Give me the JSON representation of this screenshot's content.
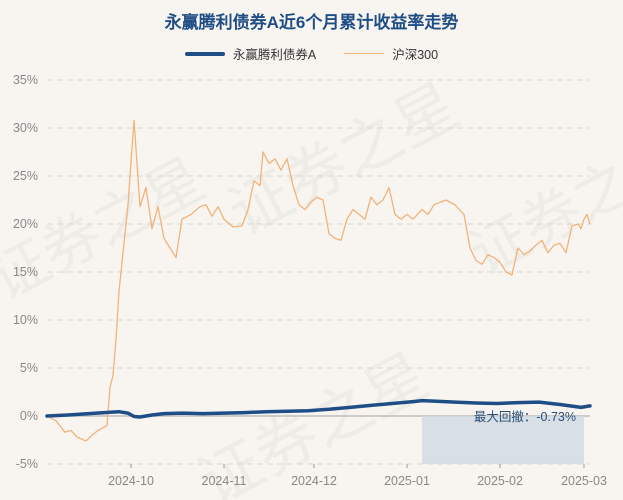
{
  "title": "永赢腾利债券A近6个月累计收益率走势",
  "legend": {
    "fund": "永赢腾利债券A",
    "index": "沪深300"
  },
  "watermark_text": "证券之星",
  "drawdown_label": "最大回撤：-0.73%",
  "colors": {
    "fund": "#1f4e86",
    "index": "#f2b27a",
    "drawdown": "#cfdbe4"
  },
  "chart_data": {
    "type": "line",
    "ylim": [
      -5,
      35
    ],
    "yticks": [
      -5,
      0,
      5,
      10,
      15,
      20,
      25,
      30,
      35
    ],
    "ytick_labels": [
      "-5%",
      "0%",
      "5%",
      "10%",
      "15%",
      "20%",
      "25%",
      "30%",
      "35%"
    ],
    "x_range": [
      "2024-09-03",
      "2025-03-03"
    ],
    "xticks": [
      "2024-10-01",
      "2024-11-01",
      "2024-12-01",
      "2025-01-01",
      "2025-02-01",
      "2025-03-01"
    ],
    "xtick_labels": [
      "2024-10",
      "2024-11",
      "2024-12",
      "2025-01",
      "2025-02",
      "2025-03"
    ],
    "grid": true,
    "legend_position": "top-center",
    "drawdown_range": [
      "2025-01-06",
      "2025-03-01"
    ],
    "series": [
      {
        "name": "永赢腾利债券A",
        "points": [
          [
            "2024-09-03",
            0.0
          ],
          [
            "2024-09-10",
            0.1
          ],
          [
            "2024-09-17",
            0.25
          ],
          [
            "2024-09-24",
            0.4
          ],
          [
            "2024-09-27",
            0.45
          ],
          [
            "2024-09-30",
            0.3
          ],
          [
            "2024-10-02",
            -0.05
          ],
          [
            "2024-10-04",
            -0.1
          ],
          [
            "2024-10-08",
            0.1
          ],
          [
            "2024-10-12",
            0.25
          ],
          [
            "2024-10-18",
            0.3
          ],
          [
            "2024-10-25",
            0.25
          ],
          [
            "2024-11-01",
            0.3
          ],
          [
            "2024-11-08",
            0.35
          ],
          [
            "2024-11-15",
            0.45
          ],
          [
            "2024-11-22",
            0.5
          ],
          [
            "2024-11-29",
            0.55
          ],
          [
            "2024-12-06",
            0.7
          ],
          [
            "2024-12-13",
            0.9
          ],
          [
            "2024-12-20",
            1.1
          ],
          [
            "2024-12-27",
            1.3
          ],
          [
            "2025-01-03",
            1.5
          ],
          [
            "2025-01-06",
            1.6
          ],
          [
            "2025-01-10",
            1.55
          ],
          [
            "2025-01-17",
            1.45
          ],
          [
            "2025-01-24",
            1.35
          ],
          [
            "2025-01-31",
            1.3
          ],
          [
            "2025-02-07",
            1.4
          ],
          [
            "2025-02-14",
            1.45
          ],
          [
            "2025-02-21",
            1.2
          ],
          [
            "2025-02-28",
            0.9
          ],
          [
            "2025-03-03",
            1.05
          ]
        ]
      },
      {
        "name": "沪深300",
        "points": [
          [
            "2024-09-03",
            0.0
          ],
          [
            "2024-09-06",
            -0.5
          ],
          [
            "2024-09-09",
            -1.7
          ],
          [
            "2024-09-11",
            -1.5
          ],
          [
            "2024-09-13",
            -2.2
          ],
          [
            "2024-09-16",
            -2.6
          ],
          [
            "2024-09-18",
            -2.0
          ],
          [
            "2024-09-20",
            -1.5
          ],
          [
            "2024-09-23",
            -1.0
          ],
          [
            "2024-09-24",
            3.0
          ],
          [
            "2024-09-25",
            4.2
          ],
          [
            "2024-09-26",
            8.0
          ],
          [
            "2024-09-27",
            13.0
          ],
          [
            "2024-09-30",
            22.0
          ],
          [
            "2024-10-02",
            30.8
          ],
          [
            "2024-10-04",
            21.8
          ],
          [
            "2024-10-06",
            23.8
          ],
          [
            "2024-10-08",
            19.5
          ],
          [
            "2024-10-10",
            21.8
          ],
          [
            "2024-10-12",
            18.5
          ],
          [
            "2024-10-14",
            17.5
          ],
          [
            "2024-10-16",
            16.5
          ],
          [
            "2024-10-18",
            20.5
          ],
          [
            "2024-10-21",
            21.0
          ],
          [
            "2024-10-24",
            21.8
          ],
          [
            "2024-10-26",
            22.0
          ],
          [
            "2024-10-28",
            20.8
          ],
          [
            "2024-10-30",
            21.8
          ],
          [
            "2024-11-01",
            20.5
          ],
          [
            "2024-11-04",
            19.7
          ],
          [
            "2024-11-07",
            19.8
          ],
          [
            "2024-11-09",
            21.5
          ],
          [
            "2024-11-11",
            24.5
          ],
          [
            "2024-11-13",
            24.0
          ],
          [
            "2024-11-14",
            27.5
          ],
          [
            "2024-11-16",
            26.3
          ],
          [
            "2024-11-18",
            26.8
          ],
          [
            "2024-11-20",
            25.6
          ],
          [
            "2024-11-22",
            26.8
          ],
          [
            "2024-11-24",
            24.0
          ],
          [
            "2024-11-26",
            22.0
          ],
          [
            "2024-11-28",
            21.5
          ],
          [
            "2024-11-30",
            22.3
          ],
          [
            "2024-12-02",
            22.8
          ],
          [
            "2024-12-04",
            22.5
          ],
          [
            "2024-12-06",
            19.0
          ],
          [
            "2024-12-08",
            18.5
          ],
          [
            "2024-12-10",
            18.3
          ],
          [
            "2024-12-12",
            20.5
          ],
          [
            "2024-12-14",
            21.5
          ],
          [
            "2024-12-16",
            21.0
          ],
          [
            "2024-12-18",
            20.5
          ],
          [
            "2024-12-20",
            22.8
          ],
          [
            "2024-12-22",
            22.0
          ],
          [
            "2024-12-24",
            22.5
          ],
          [
            "2024-12-26",
            23.8
          ],
          [
            "2024-12-28",
            21.0
          ],
          [
            "2024-12-30",
            20.5
          ],
          [
            "2025-01-01",
            21.0
          ],
          [
            "2025-01-03",
            20.5
          ],
          [
            "2025-01-06",
            21.5
          ],
          [
            "2025-01-08",
            21.0
          ],
          [
            "2025-01-10",
            22.0
          ],
          [
            "2025-01-14",
            22.5
          ],
          [
            "2025-01-17",
            22.0
          ],
          [
            "2025-01-20",
            21.0
          ],
          [
            "2025-01-22",
            17.5
          ],
          [
            "2025-01-24",
            16.2
          ],
          [
            "2025-01-26",
            15.8
          ],
          [
            "2025-01-28",
            16.8
          ],
          [
            "2025-01-30",
            16.5
          ],
          [
            "2025-02-01",
            16.0
          ],
          [
            "2025-02-03",
            15.0
          ],
          [
            "2025-02-05",
            14.7
          ],
          [
            "2025-02-07",
            17.5
          ],
          [
            "2025-02-09",
            16.8
          ],
          [
            "2025-02-11",
            17.2
          ],
          [
            "2025-02-13",
            17.8
          ],
          [
            "2025-02-15",
            18.3
          ],
          [
            "2025-02-17",
            17.0
          ],
          [
            "2025-02-19",
            17.8
          ],
          [
            "2025-02-21",
            18.0
          ],
          [
            "2025-02-23",
            17.0
          ],
          [
            "2025-02-25",
            19.8
          ],
          [
            "2025-02-27",
            20.0
          ],
          [
            "2025-02-28",
            19.5
          ],
          [
            "2025-03-01",
            20.5
          ],
          [
            "2025-03-02",
            21.0
          ],
          [
            "2025-03-03",
            20.0
          ]
        ]
      }
    ]
  }
}
